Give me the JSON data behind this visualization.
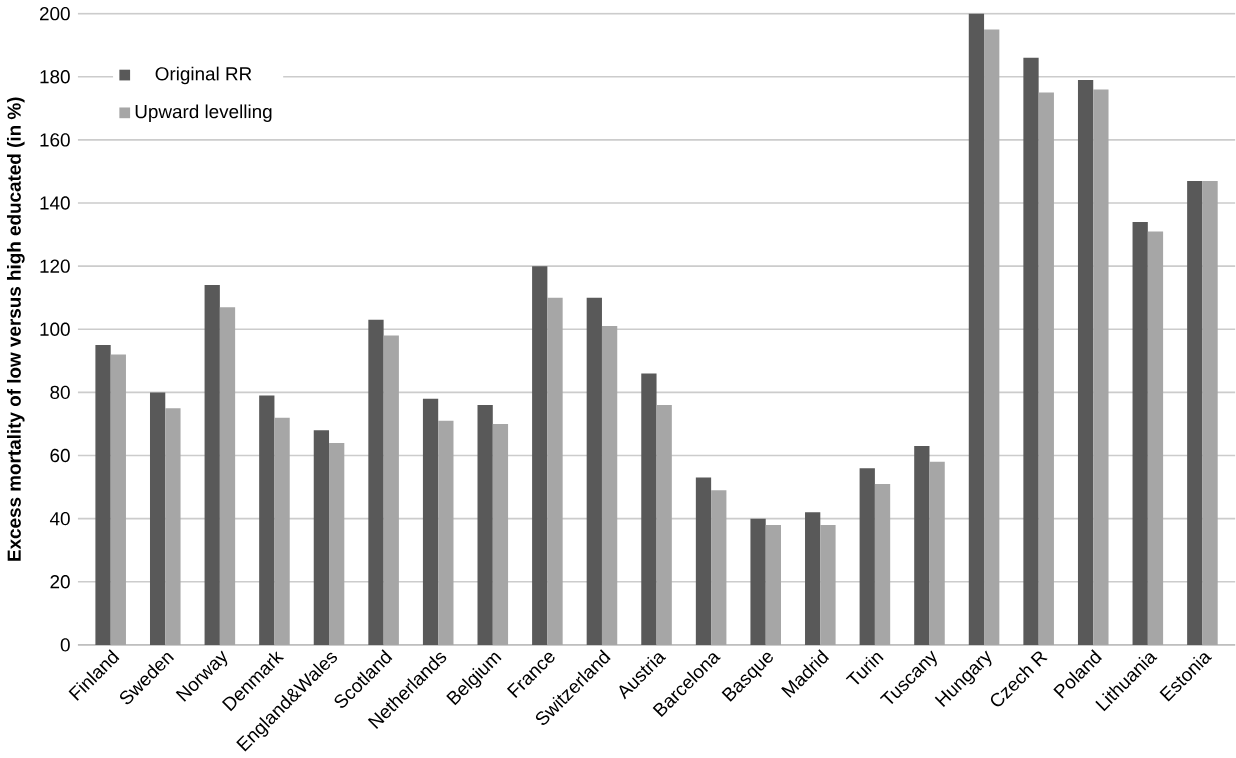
{
  "chart_data": {
    "type": "bar",
    "ylabel": "Excess mortality of low versus high educated (in %)",
    "categories": [
      "Finland",
      "Sweden",
      "Norway",
      "Denmark",
      "England&Wales",
      "Scotland",
      "Netherlands",
      "Belgium",
      "France",
      "Switzerland",
      "Austria",
      "Barcelona",
      "Basque",
      "Madrid",
      "Turin",
      "Tuscany",
      "Hungary",
      "Czech R",
      "Poland",
      "Lithuania",
      "Estonia"
    ],
    "series": [
      {
        "name": "Original RR",
        "color": "#595959",
        "values": [
          95,
          80,
          114,
          79,
          68,
          103,
          78,
          76,
          120,
          110,
          86,
          53,
          40,
          42,
          56,
          63,
          200,
          186,
          179,
          134,
          147
        ]
      },
      {
        "name": "Upward levelling",
        "color": "#a6a6a6",
        "values": [
          92,
          75,
          107,
          72,
          64,
          98,
          71,
          70,
          110,
          101,
          76,
          49,
          38,
          38,
          51,
          58,
          195,
          175,
          176,
          131,
          147
        ]
      }
    ],
    "ylim": [
      0,
      200
    ],
    "yticks": [
      0,
      20,
      40,
      60,
      80,
      100,
      120,
      140,
      160,
      180,
      200
    ],
    "grid": "y",
    "legend": "top left"
  }
}
